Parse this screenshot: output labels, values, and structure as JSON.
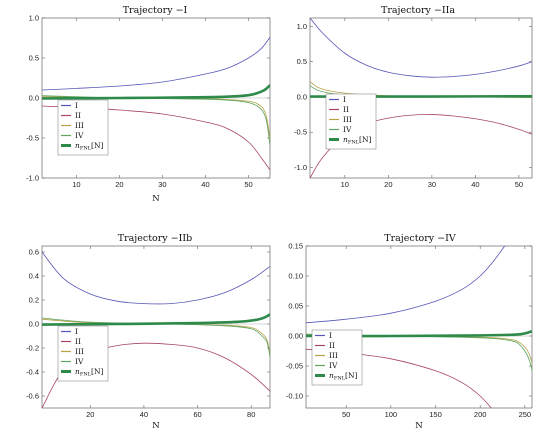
{
  "colors": {
    "I": "#5656b8",
    "II": "#a8465f",
    "III": "#b7a147",
    "IV": "#5ea55e",
    "nfn": "#2e8a4a",
    "axis": "#666666"
  },
  "chart_data": [
    {
      "type": "line",
      "title": "Trajectory −I",
      "xlabel": "N",
      "ylabel": "",
      "xlim": [
        2,
        55
      ],
      "ylim": [
        -1.0,
        1.0
      ],
      "xticks": [
        10,
        20,
        30,
        40,
        50
      ],
      "yticks": [
        -1.0,
        -0.5,
        0.0,
        0.5,
        1.0
      ],
      "ytick_labels": [
        "-1.0",
        "-0.5",
        "0.0",
        "0.5",
        "1.0"
      ],
      "grid": false,
      "legend_position": "lower-left",
      "legend": [
        "I",
        "II",
        "III",
        "IV",
        "n_FNL[N]"
      ],
      "series": [
        {
          "name": "I",
          "x": [
            2,
            10,
            20,
            30,
            40,
            45,
            50,
            53,
            55
          ],
          "y": [
            0.1,
            0.12,
            0.15,
            0.2,
            0.3,
            0.37,
            0.5,
            0.62,
            0.76
          ]
        },
        {
          "name": "II",
          "x": [
            2,
            10,
            20,
            30,
            40,
            45,
            50,
            53,
            55
          ],
          "y": [
            -0.1,
            -0.12,
            -0.15,
            -0.2,
            -0.3,
            -0.38,
            -0.55,
            -0.75,
            -0.9
          ]
        },
        {
          "name": "III",
          "x": [
            2,
            20,
            40,
            48,
            52,
            54,
            55
          ],
          "y": [
            0.02,
            0.0,
            -0.01,
            -0.03,
            -0.07,
            -0.2,
            -0.52
          ]
        },
        {
          "name": "IV",
          "x": [
            2,
            20,
            40,
            48,
            52,
            54,
            55
          ],
          "y": [
            0.03,
            0.0,
            -0.015,
            -0.04,
            -0.1,
            -0.25,
            -0.6
          ]
        },
        {
          "name": "n_FNL[N]",
          "x": [
            2,
            20,
            40,
            48,
            51,
            53,
            54,
            55
          ],
          "y": [
            -0.005,
            0.0,
            0.01,
            0.025,
            0.045,
            0.08,
            0.11,
            0.16
          ]
        }
      ]
    },
    {
      "type": "line",
      "title": "Trajectory −IIa",
      "xlabel": "",
      "ylabel": "",
      "xlim": [
        2,
        53
      ],
      "ylim": [
        -1.15,
        1.12
      ],
      "xticks": [
        10,
        20,
        30,
        40,
        50
      ],
      "yticks": [
        -1.0,
        -0.5,
        0.0,
        0.5,
        1.0
      ],
      "ytick_labels": [
        "-1.0",
        "-0.5",
        "0.0",
        "0.5",
        "1.0"
      ],
      "grid": false,
      "legend_position": "lower-left",
      "legend": [
        "I",
        "II",
        "III",
        "IV",
        "n_FNL[N]"
      ],
      "series": [
        {
          "name": "I",
          "x": [
            2,
            5,
            10,
            15,
            20,
            25,
            30,
            35,
            40,
            45,
            50,
            53
          ],
          "y": [
            1.12,
            0.9,
            0.62,
            0.45,
            0.35,
            0.3,
            0.28,
            0.29,
            0.32,
            0.37,
            0.44,
            0.5
          ]
        },
        {
          "name": "II",
          "x": [
            2,
            5,
            10,
            15,
            20,
            25,
            30,
            35,
            40,
            45,
            50,
            53
          ],
          "y": [
            -1.15,
            -0.85,
            -0.55,
            -0.38,
            -0.3,
            -0.26,
            -0.25,
            -0.27,
            -0.31,
            -0.37,
            -0.46,
            -0.53
          ]
        },
        {
          "name": "III",
          "x": [
            2,
            4,
            8,
            15,
            25,
            40,
            53
          ],
          "y": [
            0.22,
            0.13,
            0.07,
            0.03,
            0.01,
            0.0,
            -0.01
          ]
        },
        {
          "name": "IV",
          "x": [
            2,
            4,
            8,
            15,
            25,
            40,
            53
          ],
          "y": [
            0.16,
            0.09,
            0.04,
            0.02,
            0.005,
            0.0,
            -0.005
          ]
        },
        {
          "name": "n_FNL[N]",
          "x": [
            2,
            20,
            40,
            53
          ],
          "y": [
            0.005,
            0.005,
            0.008,
            0.01
          ]
        }
      ]
    },
    {
      "type": "line",
      "title": "Trajectory −IIb",
      "xlabel": "N",
      "ylabel": "",
      "xlim": [
        2,
        87
      ],
      "ylim": [
        -0.7,
        0.65
      ],
      "xticks": [
        20,
        40,
        60,
        80
      ],
      "yticks": [
        -0.6,
        -0.4,
        -0.2,
        0.0,
        0.2,
        0.4,
        0.6
      ],
      "ytick_labels": [
        "-0.6",
        "-0.4",
        "-0.2",
        "0.0",
        "0.2",
        "0.4",
        "0.6"
      ],
      "grid": false,
      "legend_position": "lower-left",
      "legend": [
        "I",
        "II",
        "III",
        "IV",
        "n_FNL[N]"
      ],
      "series": [
        {
          "name": "I",
          "x": [
            2,
            10,
            20,
            30,
            40,
            50,
            60,
            70,
            80,
            87
          ],
          "y": [
            0.6,
            0.38,
            0.25,
            0.19,
            0.17,
            0.17,
            0.2,
            0.26,
            0.37,
            0.48
          ]
        },
        {
          "name": "II",
          "x": [
            2,
            10,
            20,
            30,
            40,
            50,
            60,
            70,
            80,
            87
          ],
          "y": [
            -0.7,
            -0.38,
            -0.24,
            -0.18,
            -0.16,
            -0.17,
            -0.2,
            -0.28,
            -0.42,
            -0.56
          ]
        },
        {
          "name": "III",
          "x": [
            2,
            20,
            50,
            70,
            80,
            84,
            86,
            87
          ],
          "y": [
            0.04,
            0.01,
            0.0,
            -0.01,
            -0.03,
            -0.08,
            -0.14,
            -0.26
          ]
        },
        {
          "name": "IV",
          "x": [
            2,
            20,
            50,
            70,
            80,
            84,
            86,
            87
          ],
          "y": [
            0.05,
            0.015,
            0.0,
            -0.015,
            -0.04,
            -0.1,
            -0.16,
            -0.28
          ]
        },
        {
          "name": "n_FNL[N]",
          "x": [
            2,
            30,
            60,
            75,
            82,
            85,
            87
          ],
          "y": [
            -0.005,
            0.0,
            0.008,
            0.018,
            0.035,
            0.055,
            0.08
          ]
        }
      ]
    },
    {
      "type": "line",
      "title": "Trajectory −IV",
      "xlabel": "N",
      "ylabel": "",
      "xlim": [
        5,
        258
      ],
      "ylim": [
        -0.12,
        0.15
      ],
      "xticks": [
        50,
        100,
        150,
        200,
        250
      ],
      "yticks": [
        -0.1,
        -0.05,
        0.0,
        0.05,
        0.1,
        0.15
      ],
      "ytick_labels": [
        "-0.10",
        "-0.05",
        "0.00",
        "0.05",
        "0.10",
        "0.15"
      ],
      "grid": false,
      "legend_position": "lower-left",
      "legend": [
        "I",
        "II",
        "III",
        "IV",
        "n_FNL[N]"
      ],
      "series": [
        {
          "name": "I",
          "x": [
            5,
            50,
            100,
            150,
            180,
            200,
            215,
            225,
            230
          ],
          "y": [
            0.022,
            0.028,
            0.038,
            0.058,
            0.078,
            0.1,
            0.125,
            0.145,
            0.155
          ]
        },
        {
          "name": "II",
          "x": [
            5,
            50,
            100,
            150,
            180,
            200,
            215,
            225,
            230
          ],
          "y": [
            -0.022,
            -0.028,
            -0.038,
            -0.058,
            -0.078,
            -0.1,
            -0.125,
            -0.145,
            -0.155
          ]
        },
        {
          "name": "III",
          "x": [
            5,
            100,
            200,
            235,
            245,
            252,
            256,
            258
          ],
          "y": [
            0.002,
            0.0,
            -0.002,
            -0.006,
            -0.012,
            -0.022,
            -0.035,
            -0.045
          ]
        },
        {
          "name": "IV",
          "x": [
            5,
            100,
            200,
            235,
            245,
            252,
            256,
            258
          ],
          "y": [
            0.003,
            0.0,
            -0.003,
            -0.008,
            -0.016,
            -0.03,
            -0.045,
            -0.058
          ]
        },
        {
          "name": "n_FNL[N]",
          "x": [
            5,
            100,
            200,
            235,
            245,
            252,
            256,
            258
          ],
          "y": [
            0.0,
            0.0,
            0.001,
            0.002,
            0.003,
            0.005,
            0.007,
            0.008
          ]
        }
      ]
    }
  ]
}
